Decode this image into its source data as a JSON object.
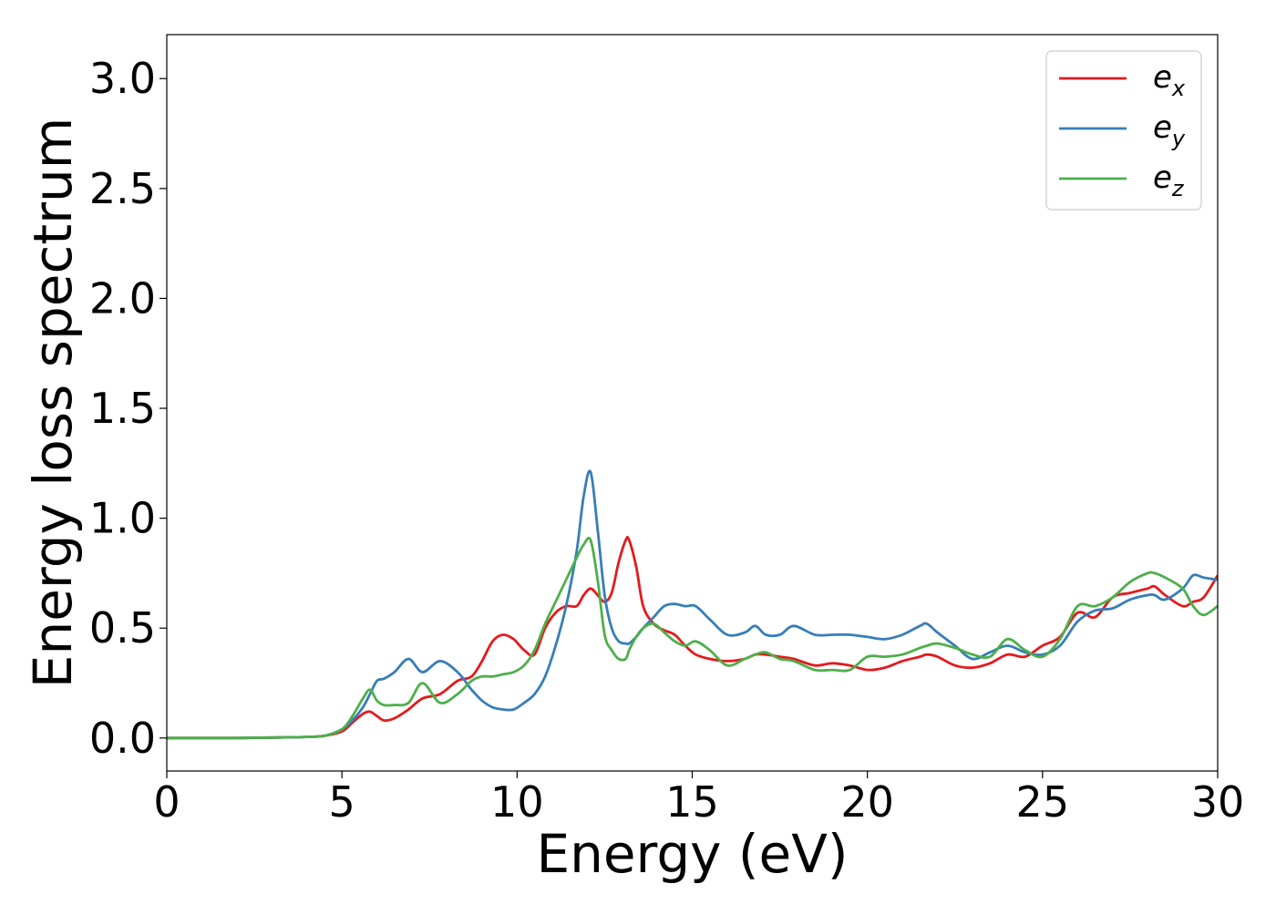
{
  "chart_data": {
    "type": "line",
    "title": "",
    "xlabel": "Energy (eV)",
    "ylabel": "Energy loss spectrum",
    "xlim": [
      0,
      30
    ],
    "ylim": [
      -0.15,
      3.2
    ],
    "xticks": [
      0,
      5,
      10,
      15,
      20,
      25,
      30
    ],
    "xtick_labels": [
      "0",
      "5",
      "10",
      "15",
      "20",
      "25",
      "30"
    ],
    "yticks": [
      0.0,
      0.5,
      1.0,
      1.5,
      2.0,
      2.5,
      3.0
    ],
    "ytick_labels": [
      "0.0",
      "0.5",
      "1.0",
      "1.5",
      "2.0",
      "2.5",
      "3.0"
    ],
    "grid": false,
    "legend_position": "top-right",
    "x": [
      0,
      1,
      2,
      3,
      4,
      4.5,
      5,
      5.3,
      5.6,
      5.8,
      6.0,
      6.2,
      6.5,
      6.9,
      7.3,
      7.8,
      8.3,
      8.7,
      9.0,
      9.3,
      9.6,
      9.9,
      10.2,
      10.5,
      10.8,
      11.1,
      11.4,
      11.7,
      11.9,
      12.1,
      12.3,
      12.5,
      12.7,
      12.9,
      13.1,
      13.2,
      13.4,
      13.6,
      13.9,
      14.2,
      14.5,
      14.8,
      15.1,
      15.5,
      16.0,
      16.5,
      16.8,
      17.1,
      17.5,
      17.9,
      18.5,
      19.0,
      19.5,
      20.0,
      20.5,
      21.0,
      21.5,
      21.7,
      22.0,
      22.5,
      23.0,
      23.5,
      24.0,
      24.5,
      25.0,
      25.5,
      26.0,
      26.5,
      27.0,
      27.5,
      28.0,
      28.2,
      28.5,
      29.0,
      29.3,
      29.6,
      30.0
    ],
    "series": [
      {
        "name": "e_x",
        "label_base": "e",
        "label_sub": "x",
        "color": "#e41a1c",
        "values": [
          0,
          0,
          0,
          0.002,
          0.005,
          0.01,
          0.03,
          0.07,
          0.11,
          0.12,
          0.1,
          0.08,
          0.09,
          0.13,
          0.18,
          0.2,
          0.26,
          0.28,
          0.35,
          0.44,
          0.47,
          0.45,
          0.4,
          0.38,
          0.5,
          0.57,
          0.6,
          0.6,
          0.65,
          0.68,
          0.65,
          0.62,
          0.66,
          0.8,
          0.9,
          0.9,
          0.78,
          0.6,
          0.52,
          0.49,
          0.47,
          0.42,
          0.38,
          0.36,
          0.35,
          0.36,
          0.38,
          0.38,
          0.37,
          0.36,
          0.33,
          0.34,
          0.33,
          0.31,
          0.32,
          0.35,
          0.37,
          0.38,
          0.37,
          0.33,
          0.32,
          0.34,
          0.38,
          0.37,
          0.42,
          0.46,
          0.57,
          0.55,
          0.64,
          0.66,
          0.68,
          0.69,
          0.65,
          0.6,
          0.62,
          0.64,
          0.74
        ]
      },
      {
        "name": "e_y",
        "label_base": "e",
        "label_sub": "y",
        "color": "#377eb8",
        "values": [
          0,
          0,
          0,
          0.002,
          0.005,
          0.01,
          0.04,
          0.08,
          0.14,
          0.2,
          0.26,
          0.27,
          0.3,
          0.36,
          0.3,
          0.35,
          0.3,
          0.22,
          0.17,
          0.14,
          0.13,
          0.13,
          0.16,
          0.2,
          0.28,
          0.42,
          0.6,
          0.85,
          1.1,
          1.21,
          0.95,
          0.65,
          0.5,
          0.44,
          0.43,
          0.43,
          0.46,
          0.5,
          0.55,
          0.6,
          0.61,
          0.6,
          0.6,
          0.54,
          0.47,
          0.48,
          0.51,
          0.47,
          0.47,
          0.51,
          0.47,
          0.47,
          0.47,
          0.46,
          0.45,
          0.47,
          0.51,
          0.52,
          0.48,
          0.42,
          0.36,
          0.39,
          0.42,
          0.39,
          0.38,
          0.42,
          0.53,
          0.58,
          0.59,
          0.63,
          0.65,
          0.65,
          0.63,
          0.68,
          0.74,
          0.73,
          0.72
        ]
      },
      {
        "name": "e_z",
        "label_base": "e",
        "label_sub": "z",
        "color": "#4daf4a",
        "values": [
          0,
          0,
          0,
          0.002,
          0.005,
          0.01,
          0.04,
          0.1,
          0.18,
          0.22,
          0.17,
          0.15,
          0.15,
          0.16,
          0.25,
          0.16,
          0.2,
          0.26,
          0.28,
          0.28,
          0.29,
          0.3,
          0.33,
          0.4,
          0.52,
          0.62,
          0.72,
          0.82,
          0.88,
          0.9,
          0.72,
          0.47,
          0.4,
          0.36,
          0.36,
          0.4,
          0.46,
          0.5,
          0.52,
          0.48,
          0.44,
          0.42,
          0.44,
          0.4,
          0.33,
          0.36,
          0.38,
          0.39,
          0.36,
          0.35,
          0.31,
          0.31,
          0.31,
          0.37,
          0.37,
          0.38,
          0.41,
          0.42,
          0.43,
          0.41,
          0.38,
          0.37,
          0.45,
          0.4,
          0.37,
          0.45,
          0.6,
          0.6,
          0.64,
          0.71,
          0.75,
          0.75,
          0.73,
          0.68,
          0.6,
          0.56,
          0.6
        ]
      }
    ]
  }
}
